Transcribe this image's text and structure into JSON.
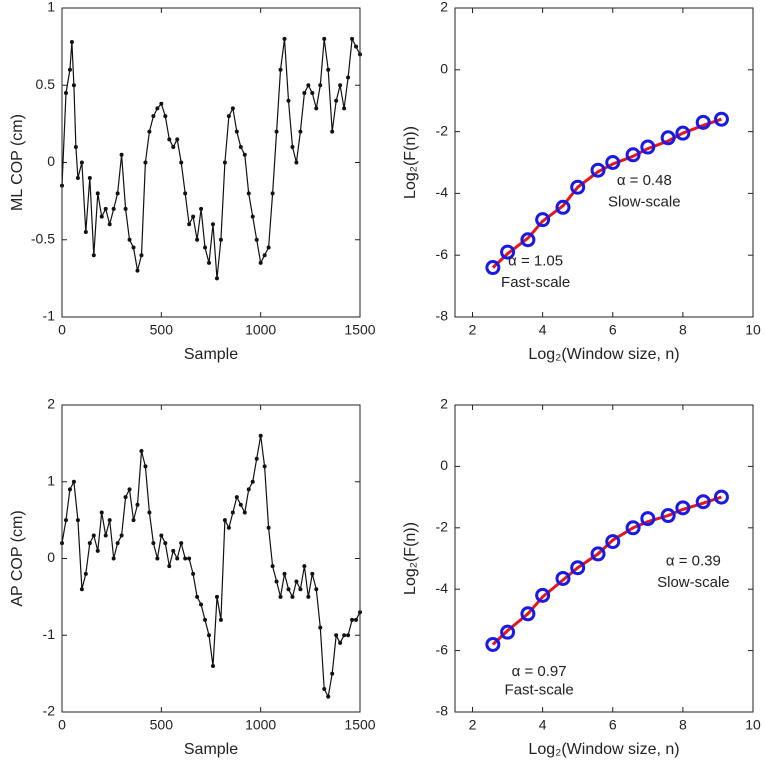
{
  "chart_data": [
    {
      "type": "line",
      "xlabel": "Sample",
      "ylabel": "ML COP (cm)",
      "xlim": [
        0,
        1500
      ],
      "xticks": [
        0,
        500,
        1000,
        1500
      ],
      "ylim": [
        -1,
        1
      ],
      "yticks": [
        -1,
        -0.5,
        0,
        0.5,
        1
      ],
      "x": [
        0,
        20,
        40,
        50,
        60,
        70,
        80,
        100,
        120,
        140,
        160,
        180,
        200,
        220,
        240,
        260,
        280,
        300,
        320,
        340,
        360,
        380,
        400,
        420,
        440,
        460,
        480,
        500,
        520,
        540,
        560,
        580,
        600,
        620,
        640,
        660,
        680,
        700,
        720,
        740,
        760,
        780,
        800,
        820,
        840,
        860,
        880,
        900,
        920,
        940,
        960,
        980,
        1000,
        1020,
        1040,
        1060,
        1080,
        1100,
        1120,
        1140,
        1160,
        1180,
        1200,
        1220,
        1240,
        1260,
        1280,
        1300,
        1320,
        1340,
        1360,
        1380,
        1400,
        1420,
        1440,
        1460,
        1480,
        1500
      ],
      "series": [
        {
          "color": "#111111",
          "marker": "dot",
          "values": [
            -0.15,
            0.45,
            0.6,
            0.78,
            0.5,
            0.1,
            -0.1,
            0.0,
            -0.45,
            -0.1,
            -0.6,
            -0.2,
            -0.35,
            -0.3,
            -0.4,
            -0.3,
            -0.2,
            0.05,
            -0.3,
            -0.5,
            -0.55,
            -0.7,
            -0.6,
            0.0,
            0.2,
            0.3,
            0.35,
            0.38,
            0.3,
            0.15,
            0.1,
            0.15,
            0.0,
            -0.2,
            -0.4,
            -0.35,
            -0.5,
            -0.3,
            -0.55,
            -0.65,
            -0.4,
            -0.75,
            -0.5,
            0.0,
            0.3,
            0.35,
            0.2,
            0.1,
            0.05,
            -0.2,
            -0.35,
            -0.5,
            -0.65,
            -0.6,
            -0.55,
            -0.2,
            0.2,
            0.6,
            0.8,
            0.4,
            0.1,
            0.0,
            0.2,
            0.45,
            0.5,
            0.45,
            0.35,
            0.5,
            0.8,
            0.6,
            0.2,
            0.4,
            0.5,
            0.35,
            0.55,
            0.8,
            0.75,
            0.7
          ]
        }
      ]
    },
    {
      "type": "line",
      "xlabel": "Log₂(Window size, n)",
      "ylabel": "Log₂(F(n))",
      "xlim": [
        1.5,
        10
      ],
      "xticks": [
        2,
        4,
        6,
        8,
        10
      ],
      "ylim": [
        -8,
        2
      ],
      "yticks": [
        -8,
        -6,
        -4,
        -2,
        0,
        2
      ],
      "x": [
        2.58,
        3.0,
        3.58,
        4.0,
        4.58,
        5.0,
        5.58,
        6.0,
        6.58,
        7.0,
        7.58,
        8.0,
        8.58,
        9.1
      ],
      "series": [
        {
          "color": "#e8141c",
          "marker": "none",
          "values": [
            -6.4,
            -5.95,
            -5.45,
            -4.9,
            -4.4,
            -3.8,
            -3.3,
            -3.05,
            -2.8,
            -2.55,
            -2.3,
            -2.05,
            -1.8,
            -1.6
          ]
        },
        {
          "color": "#1a1ae6",
          "marker": "circle",
          "values": [
            -6.4,
            -5.9,
            -5.5,
            -4.85,
            -4.45,
            -3.8,
            -3.25,
            -3.0,
            -2.75,
            -2.5,
            -2.2,
            -2.05,
            -1.7,
            -1.6
          ]
        }
      ],
      "annotations": [
        {
          "text": "α = 0.48",
          "x": 6.9,
          "y": -3.6
        },
        {
          "text": "Slow-scale",
          "x": 6.9,
          "y": -4.3
        },
        {
          "text": "α = 1.05",
          "x": 3.8,
          "y": -6.2
        },
        {
          "text": "Fast-scale",
          "x": 3.8,
          "y": -6.9
        }
      ]
    },
    {
      "type": "line",
      "xlabel": "Sample",
      "ylabel": "AP COP (cm)",
      "xlim": [
        0,
        1500
      ],
      "xticks": [
        0,
        500,
        1000,
        1500
      ],
      "ylim": [
        -2,
        2
      ],
      "yticks": [
        -2,
        -1,
        0,
        1,
        2
      ],
      "x": [
        0,
        20,
        40,
        60,
        80,
        100,
        120,
        140,
        160,
        180,
        200,
        220,
        240,
        260,
        280,
        300,
        320,
        340,
        360,
        380,
        400,
        420,
        440,
        460,
        480,
        500,
        520,
        540,
        560,
        580,
        600,
        620,
        640,
        660,
        680,
        700,
        720,
        740,
        760,
        780,
        800,
        820,
        840,
        860,
        880,
        900,
        920,
        940,
        960,
        980,
        1000,
        1020,
        1040,
        1060,
        1080,
        1100,
        1120,
        1140,
        1160,
        1180,
        1200,
        1220,
        1240,
        1260,
        1280,
        1300,
        1320,
        1340,
        1360,
        1380,
        1400,
        1420,
        1440,
        1460,
        1480,
        1500
      ],
      "series": [
        {
          "color": "#111111",
          "marker": "dot",
          "values": [
            0.2,
            0.5,
            0.9,
            1.0,
            0.5,
            -0.4,
            -0.2,
            0.2,
            0.3,
            0.1,
            0.6,
            0.3,
            0.5,
            0.0,
            0.2,
            0.3,
            0.8,
            0.9,
            0.5,
            0.7,
            1.4,
            1.2,
            0.6,
            0.2,
            0.0,
            0.3,
            0.2,
            -0.1,
            0.1,
            0.0,
            0.2,
            0.0,
            0.0,
            -0.2,
            -0.5,
            -0.6,
            -0.8,
            -1.0,
            -1.4,
            -0.5,
            -0.8,
            0.5,
            0.4,
            0.6,
            0.8,
            0.7,
            0.6,
            0.9,
            1.0,
            1.3,
            1.6,
            1.2,
            0.4,
            -0.1,
            -0.3,
            -0.5,
            -0.2,
            -0.4,
            -0.5,
            -0.3,
            -0.4,
            -0.1,
            -0.5,
            -0.2,
            -0.4,
            -0.9,
            -1.7,
            -1.8,
            -1.5,
            -1.0,
            -1.1,
            -1.0,
            -1.0,
            -0.8,
            -0.8,
            -0.7
          ]
        }
      ]
    },
    {
      "type": "line",
      "xlabel": "Log₂(Window size, n)",
      "ylabel": "Log₂(F(n))",
      "xlim": [
        1.5,
        10
      ],
      "xticks": [
        2,
        4,
        6,
        8,
        10
      ],
      "ylim": [
        -8,
        2
      ],
      "yticks": [
        -8,
        -6,
        -4,
        -2,
        0,
        2
      ],
      "x": [
        2.58,
        3.0,
        3.58,
        4.0,
        4.58,
        5.0,
        5.58,
        6.0,
        6.58,
        7.0,
        7.58,
        8.0,
        8.58,
        9.1
      ],
      "series": [
        {
          "color": "#e8141c",
          "marker": "none",
          "values": [
            -5.8,
            -5.35,
            -4.8,
            -4.25,
            -3.7,
            -3.3,
            -2.85,
            -2.4,
            -2.0,
            -1.8,
            -1.6,
            -1.4,
            -1.2,
            -1.0
          ]
        },
        {
          "color": "#1a1ae6",
          "marker": "circle",
          "values": [
            -5.8,
            -5.4,
            -4.8,
            -4.2,
            -3.65,
            -3.3,
            -2.85,
            -2.45,
            -2.0,
            -1.7,
            -1.6,
            -1.35,
            -1.15,
            -1.0
          ]
        }
      ],
      "annotations": [
        {
          "text": "α = 0.39",
          "x": 8.3,
          "y": -3.1
        },
        {
          "text": "Slow-scale",
          "x": 8.3,
          "y": -3.8
        },
        {
          "text": "α = 0.97",
          "x": 3.9,
          "y": -6.7
        },
        {
          "text": "Fast-scale",
          "x": 3.9,
          "y": -7.3
        }
      ]
    }
  ]
}
